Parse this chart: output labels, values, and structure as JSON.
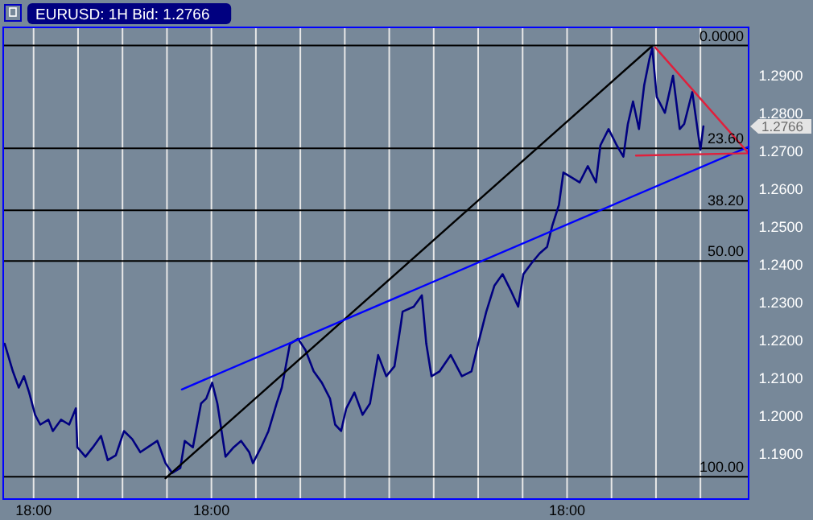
{
  "chart_data": {
    "type": "line",
    "title": "EURUSD: 1H Bid: 1.2766",
    "x": [
      "2000-01-03T14:06",
      "2000-01-03T15:12",
      "2000-01-03T16:00",
      "2000-01-03T16:42",
      "2000-01-03T17:24",
      "2000-01-03T18:12",
      "2000-01-03T18:54",
      "2000-01-03T20:00",
      "2000-01-03T20:36",
      "2000-01-03T21:42",
      "2000-01-03T22:48",
      "2000-01-03T23:42",
      "2000-01-03T23:54",
      "2000-01-04T01:00",
      "2000-01-04T02:00",
      "2000-01-04T03:06",
      "2000-01-04T04:00",
      "2000-01-04T05:06",
      "2000-01-04T06:12",
      "2000-01-04T07:18",
      "2000-01-04T08:24",
      "2000-01-04T09:24",
      "2000-01-04T10:42",
      "2000-01-04T11:48",
      "2000-01-04T12:42",
      "2000-01-04T13:48",
      "2000-01-04T14:24",
      "2000-01-04T15:30",
      "2000-01-04T16:36",
      "2000-01-04T17:18",
      "2000-01-04T18:06",
      "2000-01-04T18:48",
      "2000-01-04T19:54",
      "2000-01-04T21:00",
      "2000-01-04T22:00",
      "2000-01-04T23:06",
      "2000-01-04T23:36",
      "2000-01-05T00:42",
      "2000-01-05T01:42",
      "2000-01-05T02:48",
      "2000-01-05T03:30",
      "2000-01-05T04:36",
      "2000-01-05T05:42",
      "2000-01-05T06:42",
      "2000-01-05T07:48",
      "2000-01-05T08:54",
      "2000-01-05T10:00",
      "2000-01-05T10:42",
      "2000-01-05T11:30",
      "2000-01-05T12:12",
      "2000-01-05T13:18",
      "2000-01-05T14:24",
      "2000-01-05T15:24",
      "2000-01-05T16:30",
      "2000-01-05T17:36",
      "2000-01-05T18:42",
      "2000-01-05T19:36",
      "2000-01-05T19:48",
      "2000-01-05T21:18",
      "2000-01-05T22:24",
      "2000-01-05T23:00",
      "2000-01-05T23:42",
      "2000-01-06T00:48",
      "2000-01-06T02:18",
      "2000-01-06T03:48",
      "2000-01-06T05:06",
      "2000-01-06T06:00",
      "2000-01-06T07:06",
      "2000-01-06T08:12",
      "2000-01-06T09:18",
      "2000-01-06T10:24",
      "2000-01-06T11:24",
      "2000-01-06T12:06",
      "2000-01-06T13:12",
      "2000-01-06T14:18",
      "2000-01-06T15:18",
      "2000-01-06T16:00",
      "2000-01-06T16:54",
      "2000-01-06T17:30",
      "2000-01-06T18:36",
      "2000-01-06T19:42",
      "2000-01-06T20:48",
      "2000-01-06T21:54",
      "2000-01-06T22:30",
      "2000-01-06T23:36",
      "2000-01-07T00:42",
      "2000-01-07T01:36",
      "2000-01-07T02:12",
      "2000-01-07T02:54",
      "2000-01-07T03:42",
      "2000-01-07T04:24",
      "2000-01-07T05:06",
      "2000-01-07T05:30",
      "2000-01-07T06:06",
      "2000-01-07T07:12",
      "2000-01-07T08:18",
      "2000-01-07T09:12",
      "2000-01-07T09:48",
      "2000-01-07T10:54",
      "2000-01-07T11:36",
      "2000-01-07T12:00",
      "2000-01-07T12:24"
    ],
    "xlim": [
      "2000-01-03T13:54",
      "2000-01-07T18:30"
    ],
    "xticks": [
      {
        "value": "2000-01-03T18:00",
        "label": "18:00"
      },
      {
        "value": "2000-01-04T00:00",
        "label": null
      },
      {
        "value": "2000-01-04T06:00",
        "label": null
      },
      {
        "value": "2000-01-04T12:00",
        "label": null
      },
      {
        "value": "2000-01-04T18:00",
        "label": "18:00"
      },
      {
        "value": "2000-01-05T00:00",
        "label": null
      },
      {
        "value": "2000-01-05T06:00",
        "label": null
      },
      {
        "value": "2000-01-05T12:00",
        "label": null
      },
      {
        "value": "2000-01-05T18:00",
        "label": null
      },
      {
        "value": "2000-01-06T00:00",
        "label": null
      },
      {
        "value": "2000-01-06T06:00",
        "label": null
      },
      {
        "value": "2000-01-06T12:00",
        "label": null
      },
      {
        "value": "2000-01-06T18:00",
        "label": "18:00"
      },
      {
        "value": "2000-01-07T00:00",
        "label": null
      },
      {
        "value": "2000-01-07T06:00",
        "label": null
      },
      {
        "value": "2000-01-07T12:00",
        "label": null
      }
    ],
    "ylim": [
      1.178,
      1.3028
    ],
    "yticks": [
      {
        "value": 1.19,
        "label": "1.1900"
      },
      {
        "value": 1.2,
        "label": "1.2000"
      },
      {
        "value": 1.21,
        "label": "1.2100"
      },
      {
        "value": 1.22,
        "label": "1.2200"
      },
      {
        "value": 1.23,
        "label": "1.2300"
      },
      {
        "value": 1.24,
        "label": "1.2400"
      },
      {
        "value": 1.25,
        "label": "1.2500"
      },
      {
        "value": 1.26,
        "label": "1.2600"
      },
      {
        "value": 1.27,
        "label": "1.2700"
      },
      {
        "value": 1.28,
        "label": "1.2800"
      },
      {
        "value": 1.29,
        "label": "1.2900"
      }
    ],
    "grid": "x",
    "line_style": "solid",
    "series": [
      {
        "color": "#000080",
        "values": [
          1.2191,
          1.2118,
          1.2075,
          1.2105,
          1.2062,
          1.2003,
          1.1977,
          1.199,
          1.196,
          1.199,
          1.1977,
          1.202,
          1.1917,
          1.1892,
          1.1917,
          1.1947,
          1.1883,
          1.1896,
          1.196,
          1.1939,
          1.1904,
          1.1917,
          1.1934,
          1.1875,
          1.1849,
          1.1862,
          1.1934,
          1.1917,
          1.2033,
          1.2046,
          1.2088,
          1.2033,
          1.1892,
          1.1917,
          1.1934,
          1.1904,
          1.1875,
          1.1917,
          1.196,
          1.2033,
          1.2075,
          1.2191,
          1.2204,
          1.2174,
          1.2118,
          1.2088,
          1.2046,
          1.1977,
          1.196,
          1.202,
          1.2062,
          1.2003,
          1.2033,
          1.2161,
          1.2105,
          1.2131,
          1.2247,
          1.2276,
          1.2289,
          1.2319,
          1.2191,
          1.2105,
          1.2118,
          1.2161,
          1.2105,
          1.2118,
          1.2191,
          1.2276,
          1.2345,
          1.2375,
          1.2332,
          1.2289,
          1.2375,
          1.2404,
          1.243,
          1.2447,
          1.2503,
          1.2558,
          1.2644,
          1.2631,
          1.2618,
          1.2661,
          1.2618,
          1.2716,
          1.2759,
          1.2716,
          1.2686,
          1.2772,
          1.2832,
          1.2759,
          1.2874,
          1.2943,
          1.2973,
          1.2844,
          1.2802,
          1.29,
          1.2759,
          1.2772,
          1.2857,
          1.2759,
          1.2704,
          1.2766
        ]
      },
      {
        "type": "line",
        "color": "#000000",
        "x": [
          "2000-01-04T11:48",
          "2000-01-07T05:30"
        ],
        "values": [
          1.1835,
          1.2979
        ]
      },
      {
        "type": "line",
        "color": "#0000ff",
        "x": [
          "2000-01-04T14:00",
          "2000-01-07T18:30"
        ],
        "values": [
          1.207,
          1.2712
        ]
      },
      {
        "type": "line",
        "color": "#e0203c",
        "x": [
          "2000-01-07T03:18",
          "2000-01-07T18:30",
          "2000-01-07T05:54"
        ],
        "values": [
          1.2689,
          1.2695,
          1.2975
        ]
      }
    ],
    "ref_lines": [
      {
        "axis": "y",
        "value": 1.298,
        "color": "#000000"
      },
      {
        "axis": "y",
        "value": 1.2708,
        "color": "#000000"
      },
      {
        "axis": "y",
        "value": 1.2544,
        "color": "#000000"
      },
      {
        "axis": "y",
        "value": 1.241,
        "color": "#000000"
      },
      {
        "axis": "y",
        "value": 1.1839,
        "color": "#000000"
      }
    ],
    "annotations": [
      {
        "text": "0.0000",
        "x": "2000-01-07T18:30",
        "y": 1.298
      },
      {
        "text": "23.60",
        "x": "2000-01-07T18:30",
        "y": 1.2708
      },
      {
        "text": "38.20",
        "x": "2000-01-07T18:30",
        "y": 1.2544
      },
      {
        "text": "50.00",
        "x": "2000-01-07T18:30",
        "y": 1.241
      },
      {
        "text": "100.00",
        "x": "2000-01-07T18:30",
        "y": 1.1839
      },
      "1.2766"
    ]
  }
}
